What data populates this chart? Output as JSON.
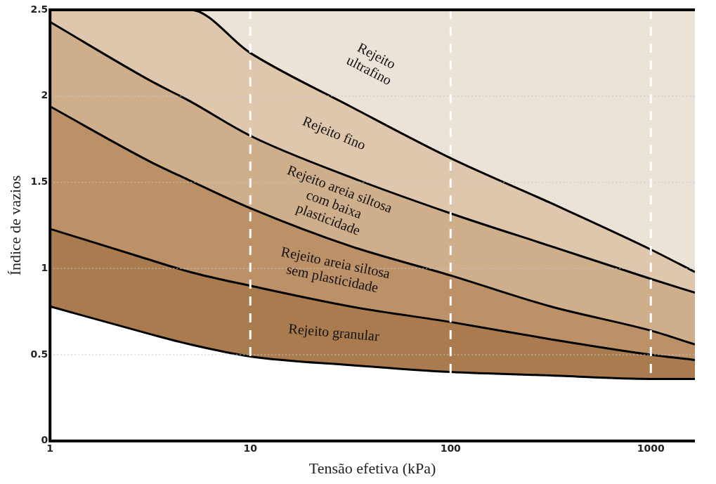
{
  "chart_data": {
    "type": "area",
    "stacked": true,
    "xlabel": "Tensão efetiva (kPa)",
    "ylabel": "Índice de vazios",
    "log": "x",
    "x": [
      1,
      3.16,
      5,
      10,
      31.6,
      100,
      316,
      1000,
      1660
    ],
    "series": [
      {
        "color": "#ffffff",
        "values": [
          0.78,
          0.62,
          0.56,
          0.49,
          0.44,
          0.4,
          0.38,
          0.36,
          0.36
        ]
      },
      {
        "name": "Rejeito granular",
        "color": "#a97b4f",
        "values": [
          0.45,
          0.43,
          0.42,
          0.41,
          0.34,
          0.29,
          0.21,
          0.14,
          0.11
        ]
      },
      {
        "name": "Rejeito areia siltosa\nsem plasticidade",
        "color": "#bd9168",
        "values": [
          0.71,
          0.57,
          0.53,
          0.45,
          0.35,
          0.27,
          0.19,
          0.14,
          0.09
        ]
      },
      {
        "name": "Rejeito areia siltosa\ncom baixa\nplasticidade",
        "color": "#cfae8c",
        "values": [
          0.49,
          0.47,
          0.46,
          0.42,
          0.4,
          0.36,
          0.35,
          0.3,
          0.3
        ]
      },
      {
        "name": "Rejeito fino",
        "color": "#dec7ad",
        "values": [
          0.07,
          0.41,
          0.53,
          0.48,
          0.41,
          0.32,
          0.25,
          0.17,
          0.12
        ]
      },
      {
        "name": "Rejeito\nultrafino",
        "color": "#ece3d8",
        "values": [
          0,
          0,
          0,
          0.25,
          0.56,
          0.86,
          1.12,
          1.39,
          1.52
        ]
      }
    ],
    "xlim": [
      1,
      1660
    ],
    "xticks": [
      1,
      10,
      100,
      1000
    ],
    "ylim": [
      0,
      2.5
    ],
    "yticks": [
      0,
      0.5,
      1,
      1.5,
      2,
      2.5
    ],
    "grid": true
  }
}
